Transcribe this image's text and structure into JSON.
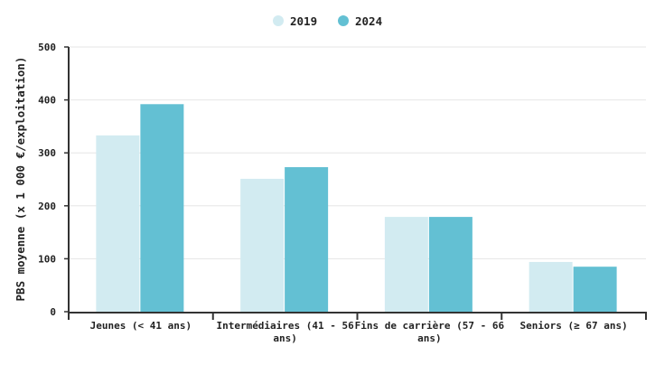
{
  "chart_data": {
    "type": "bar",
    "title": "",
    "xlabel": "",
    "ylabel": "PBS moyenne (x 1 000 €/exploitation)",
    "ylim": [
      0,
      500
    ],
    "yticks": [
      "0",
      "100",
      "200",
      "300",
      "400",
      "500"
    ],
    "grid": true,
    "legend_position": "top",
    "categories": [
      [
        "Jeunes (< 41 ans)"
      ],
      [
        "Intermédiaires (41 - 56",
        "ans)"
      ],
      [
        "Fins de carrière (57 - 66",
        "ans)"
      ],
      [
        "Seniors (≥ 67 ans)"
      ]
    ],
    "series": [
      {
        "name": "2019",
        "color": "#d2ebf1",
        "values": [
          333,
          251,
          179,
          94
        ]
      },
      {
        "name": "2024",
        "color": "#63c0d3",
        "values": [
          392,
          273,
          179,
          85
        ]
      }
    ]
  }
}
